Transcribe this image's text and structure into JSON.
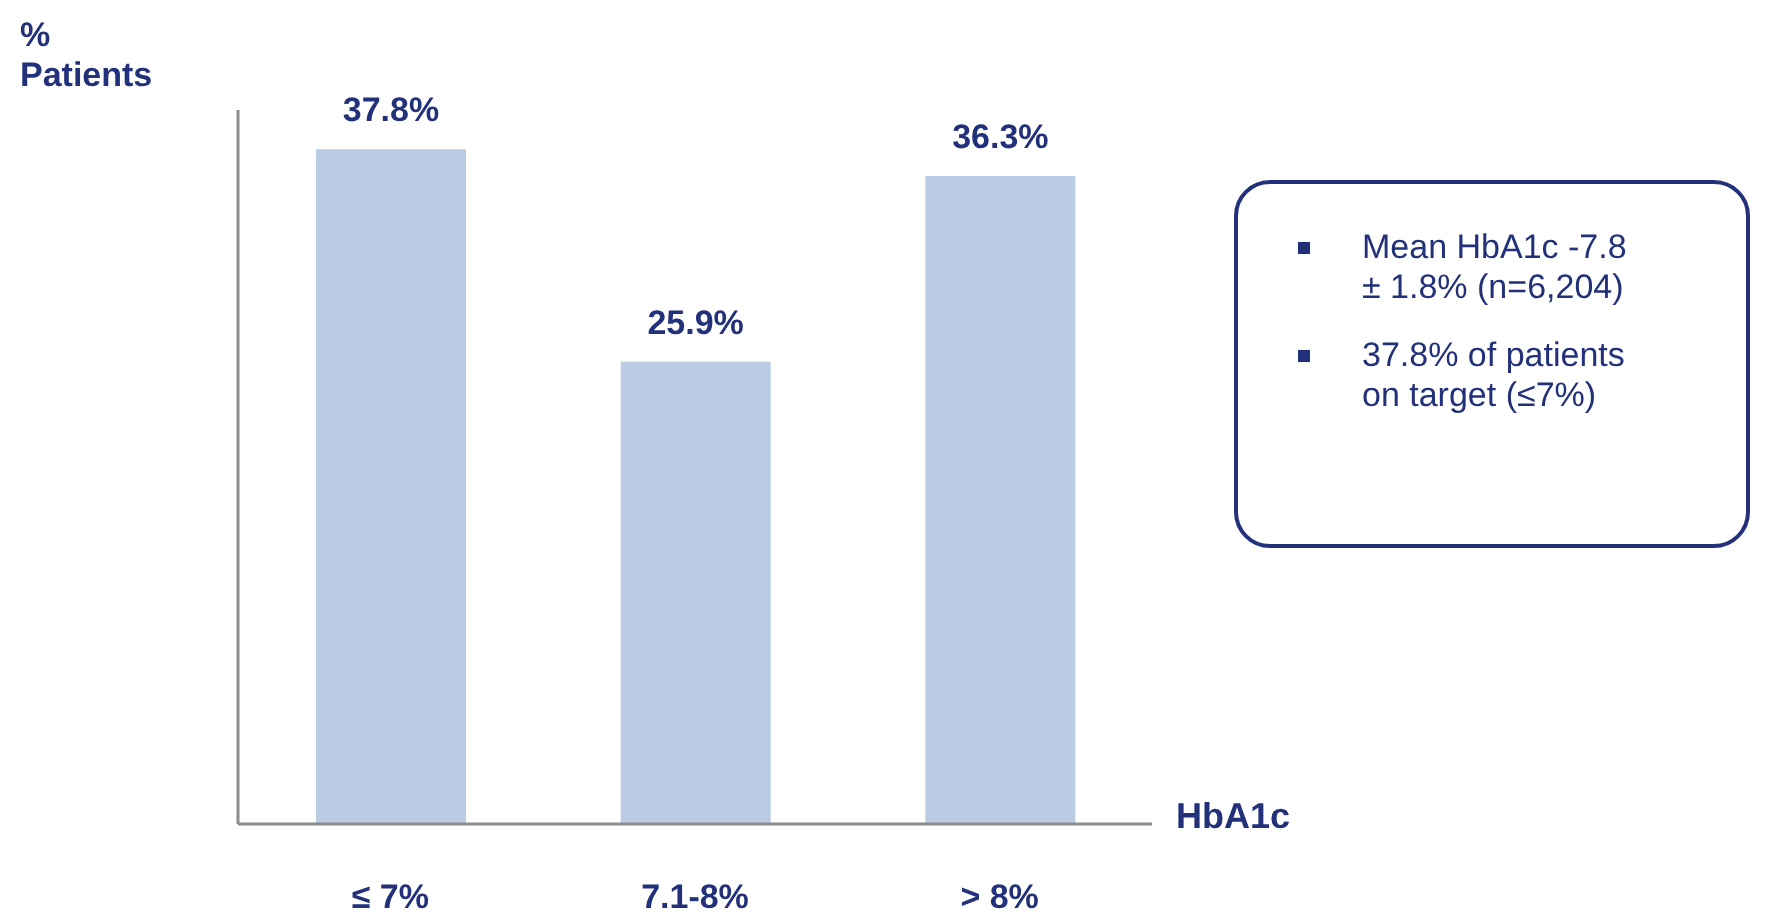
{
  "chart_data": {
    "type": "bar",
    "ylabel": "% Patients",
    "xlabel": "HbA1c",
    "categories": [
      "≤ 7%",
      "7.1-8%",
      "> 8%"
    ],
    "values": [
      37.8,
      25.9,
      36.3
    ],
    "value_labels": [
      "37.8%",
      "25.9%",
      "36.3%"
    ],
    "color": "#b9cce4",
    "ylim": [
      0,
      40
    ],
    "grid": false,
    "tick_labels": "x",
    "annotations": [
      "Mean HbA1c -7.8 ± 1.8% (n=6,204)",
      "37.8% of patients on target (≤7%)"
    ]
  }
}
